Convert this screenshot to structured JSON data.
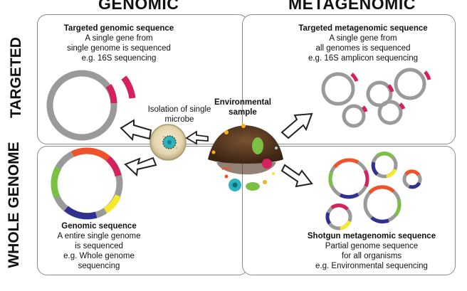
{
  "columns": {
    "left": "GENOMIC",
    "right": "METAGENOMIC"
  },
  "rows": {
    "top": "TARGETED",
    "bottom": "WHOLE GENOME"
  },
  "panels": {
    "targeted_genomic": {
      "title": "Targeted genomic sequence",
      "lines": [
        "A single gene from",
        "single genome is sequenced",
        "e.g. 16S sequencing"
      ]
    },
    "targeted_metagenomic": {
      "title": "Targeted metagenomic sequence",
      "lines": [
        "A single gene from",
        "all genomes is sequenced",
        "e.g. 16S amplicon sequencing"
      ]
    },
    "genomic": {
      "title": "Genomic sequence",
      "lines": [
        "A entire single genome",
        "is sequenced",
        "e.g. Whole genome",
        "sequencing"
      ]
    },
    "shotgun": {
      "title": "Shotgun metagenomic sequence",
      "lines": [
        "Partial genome sequence",
        "for all organisms",
        "e.g. Environmental sequencing"
      ]
    }
  },
  "center": {
    "isolation": [
      "Isolation of single",
      "microbe"
    ],
    "environment": [
      "Environmental",
      "sample"
    ]
  },
  "colors": {
    "ring": "#9a9a9a",
    "gene": "#d6215f",
    "orange": "#f0522a",
    "green": "#7ac143",
    "yellow": "#f6e82a",
    "blue": "#2e3192",
    "soil": "#5b3a22"
  }
}
